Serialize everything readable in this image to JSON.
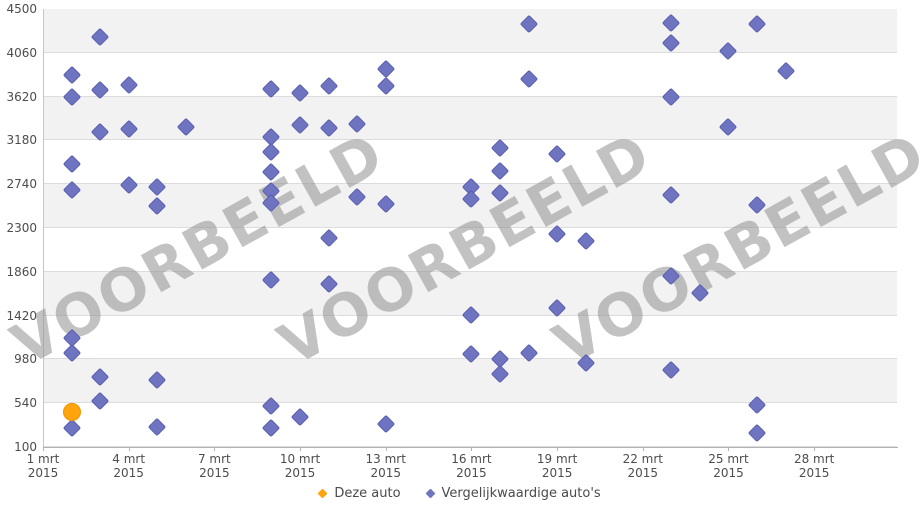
{
  "chart": {
    "watermark_text": "VOORBEELD",
    "colors": {
      "band_gray": "#f2f2f2",
      "gridline": "#dcdcdc",
      "axis_line": "#b3b3b3",
      "label_text": "#4d4d4d",
      "this_car_fill": "#FFA40D",
      "this_car_border": "#f09200",
      "comparable_fill": "#6f74c0",
      "comparable_border": "#585db1",
      "watermark": "#8f8f8f"
    },
    "legend": [
      {
        "label": "Deze auto",
        "marker": "diamond-icon",
        "color": "#FFA40D"
      },
      {
        "label": "Vergelijkwaardige auto's",
        "marker": "diamond-icon",
        "color": "#6f74c0"
      }
    ]
  },
  "chart_data": {
    "type": "scatter",
    "title": "",
    "xlabel": "",
    "ylabel": "",
    "grid": "horizontal-bands",
    "legend_position": "bottom-center",
    "x_axis": {
      "unit": "date",
      "month_label": "mrt",
      "year_label": "2015",
      "tick_days": [
        1,
        4,
        7,
        10,
        13,
        16,
        19,
        22,
        25,
        28
      ],
      "range_days": [
        1,
        30.9
      ]
    },
    "y_axis": {
      "ticks": [
        100,
        540,
        980,
        1420,
        1860,
        2300,
        2740,
        3180,
        3620,
        4060,
        4500
      ],
      "range": [
        100,
        4500
      ]
    },
    "series": [
      {
        "name": "Deze auto",
        "marker": "circle",
        "points": [
          [
            2,
            450
          ]
        ]
      },
      {
        "name": "Vergelijkwaardige auto's",
        "marker": "diamond",
        "points": [
          [
            2,
            3840
          ],
          [
            2,
            3620
          ],
          [
            2,
            2940
          ],
          [
            2,
            2680
          ],
          [
            2,
            1200
          ],
          [
            2,
            1040
          ],
          [
            2,
            290
          ],
          [
            3,
            4220
          ],
          [
            3,
            3690
          ],
          [
            3,
            3260
          ],
          [
            3,
            800
          ],
          [
            3,
            560
          ],
          [
            4,
            3740
          ],
          [
            4,
            3290
          ],
          [
            4,
            2730
          ],
          [
            5,
            2710
          ],
          [
            5,
            2520
          ],
          [
            5,
            770
          ],
          [
            5,
            300
          ],
          [
            6,
            3310
          ],
          [
            9,
            3700
          ],
          [
            9,
            3210
          ],
          [
            9,
            3060
          ],
          [
            9,
            2860
          ],
          [
            9,
            2670
          ],
          [
            9,
            2550
          ],
          [
            9,
            1780
          ],
          [
            9,
            510
          ],
          [
            9,
            290
          ],
          [
            10,
            3660
          ],
          [
            10,
            3330
          ],
          [
            10,
            400
          ],
          [
            11,
            3730
          ],
          [
            11,
            3300
          ],
          [
            11,
            2200
          ],
          [
            11,
            1740
          ],
          [
            12,
            3340
          ],
          [
            12,
            2610
          ],
          [
            13,
            3900
          ],
          [
            13,
            3730
          ],
          [
            13,
            2540
          ],
          [
            13,
            330
          ],
          [
            16,
            2710
          ],
          [
            16,
            2590
          ],
          [
            16,
            1430
          ],
          [
            16,
            1030
          ],
          [
            17,
            3100
          ],
          [
            17,
            2870
          ],
          [
            17,
            2650
          ],
          [
            17,
            980
          ],
          [
            17,
            830
          ],
          [
            18,
            4350
          ],
          [
            18,
            3800
          ],
          [
            18,
            1040
          ],
          [
            19,
            3040
          ],
          [
            19,
            2240
          ],
          [
            19,
            1500
          ],
          [
            20,
            2170
          ],
          [
            20,
            940
          ],
          [
            23,
            4360
          ],
          [
            23,
            4160
          ],
          [
            23,
            3620
          ],
          [
            23,
            2630
          ],
          [
            23,
            1820
          ],
          [
            23,
            870
          ],
          [
            24,
            1650
          ],
          [
            25,
            4080
          ],
          [
            25,
            3310
          ],
          [
            26,
            4350
          ],
          [
            26,
            2530
          ],
          [
            26,
            520
          ],
          [
            26,
            240
          ],
          [
            27,
            3880
          ]
        ]
      }
    ],
    "watermark": {
      "text": "VOORBEELD",
      "repetitions": 3
    }
  }
}
